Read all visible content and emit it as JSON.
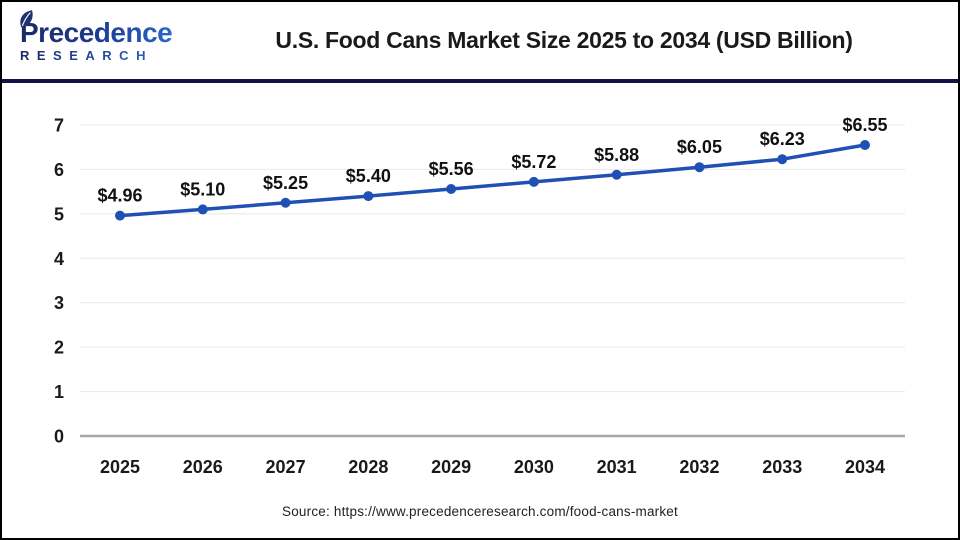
{
  "logo": {
    "name": "Precedence",
    "sub": "RESEARCH"
  },
  "header": {
    "title": "U.S. Food Cans Market Size 2025 to 2034 (USD Billion)"
  },
  "source": "Source: https://www.precedenceresearch.com/food-cans-market",
  "chart_data": {
    "type": "line",
    "title": "U.S. Food Cans Market Size 2025 to 2034 (USD Billion)",
    "categories": [
      "2025",
      "2026",
      "2027",
      "2028",
      "2029",
      "2030",
      "2031",
      "2032",
      "2033",
      "2034"
    ],
    "series": [
      {
        "name": "U.S. Food Cans Market Size (USD Billion)",
        "values": [
          4.96,
          5.1,
          5.25,
          5.4,
          5.56,
          5.72,
          5.88,
          6.05,
          6.23,
          6.55
        ],
        "point_labels": [
          "$4.96",
          "$5.10",
          "$5.25",
          "$5.40",
          "$5.56",
          "$5.72",
          "$5.88",
          "$6.05",
          "$6.23",
          "$6.55"
        ]
      }
    ],
    "xlabel": "",
    "ylabel": "",
    "ylim": [
      0,
      7
    ],
    "yticks": [
      0,
      1,
      2,
      3,
      4,
      5,
      6,
      7
    ],
    "grid": true,
    "legend": "none",
    "colors": {
      "line": "#2050b4",
      "point": "#2050b4",
      "gridline": "#e8e8e8",
      "zero_axis": "#a8a8a8",
      "label": "#111111"
    }
  }
}
